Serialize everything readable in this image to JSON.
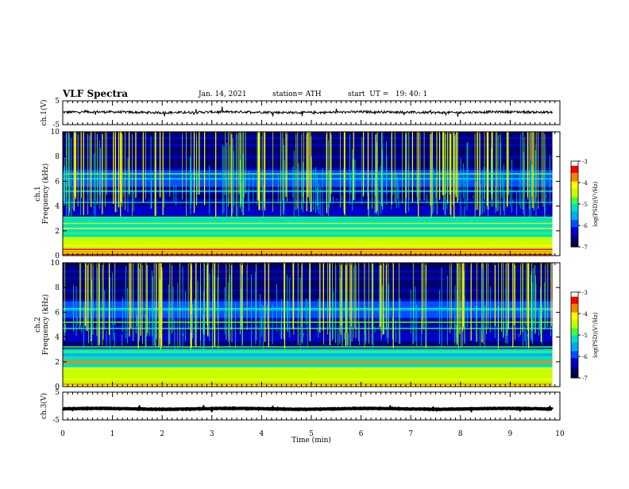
{
  "header": {
    "title": "VLF Spectra",
    "date": "Jan. 14, 2021",
    "station": "station= ATH",
    "start_ut": "start  UT =   19: 40: 1"
  },
  "colors": {
    "spectrogram_scale": [
      "#000030",
      "#000070",
      "#0000c8",
      "#0050ff",
      "#00aaff",
      "#00e0c0",
      "#40ff40",
      "#c8ff00",
      "#ffff00",
      "#ff8000",
      "#ff0000",
      "#ffffff"
    ]
  },
  "chart_data": [
    {
      "type": "line",
      "panel": "ch1-waveform",
      "ylabel": "ch.1(V)",
      "ylim": [
        -5,
        5
      ],
      "yticks": [
        "5",
        "-5"
      ],
      "xlim": [
        0,
        10
      ],
      "series": [
        {
          "trace_level_volts": 0.2,
          "noise_amplitude_volts": 1.0
        }
      ]
    },
    {
      "type": "heatmap",
      "panel": "ch1-spectrogram",
      "ylabel": "ch.1\nFrequency  (kHz)",
      "ylim": [
        0,
        10
      ],
      "yticks": [
        "0",
        "2",
        "4",
        "6",
        "8",
        "10"
      ],
      "xlim": [
        0,
        10
      ],
      "colorbar": {
        "label": "log(PSD)(V²/Hz)",
        "range": [
          -7,
          -3
        ],
        "ticks": [
          "-3",
          "-4",
          "-5",
          "-6",
          "-7"
        ]
      },
      "data_end_min": 9.85,
      "bands_khz": [
        {
          "f": 0.1,
          "level": -3.2
        },
        {
          "f": 0.3,
          "level": -3.6
        },
        {
          "f": 0.5,
          "level": -3.4
        },
        {
          "f": 0.9,
          "level": -4.3
        },
        {
          "f": 1.3,
          "level": -4.6
        },
        {
          "f": 1.8,
          "level": -4.8
        },
        {
          "f": 2.2,
          "level": -4.2
        },
        {
          "f": 2.6,
          "level": -4.5
        },
        {
          "f": 3.1,
          "level": -5.0
        },
        {
          "f": 4.3,
          "level": -5.4
        },
        {
          "f": 5.2,
          "level": -5.3
        },
        {
          "f": 6.2,
          "level": -5.2
        },
        {
          "f": 6.6,
          "level": -5.0
        }
      ],
      "spheric_count": 320
    },
    {
      "type": "heatmap",
      "panel": "ch2-spectrogram",
      "ylabel": "ch.2\nFrequency  (kHz)",
      "ylim": [
        0,
        10
      ],
      "yticks": [
        "0",
        "2",
        "4",
        "6",
        "8",
        "10"
      ],
      "xlim": [
        0,
        10
      ],
      "colorbar": {
        "label": "log(PSD)(V²/Hz)",
        "range": [
          -7,
          -3
        ],
        "ticks": [
          "-3",
          "-4",
          "-5",
          "-6",
          "-7"
        ]
      },
      "data_end_min": 9.85,
      "bands_khz": [
        {
          "f": 0.2,
          "level": -3.6
        },
        {
          "f": 0.6,
          "level": -4.0
        },
        {
          "f": 1.0,
          "level": -4.4
        },
        {
          "f": 1.5,
          "level": -4.2
        },
        {
          "f": 1.9,
          "level": -3.8
        },
        {
          "f": 2.1,
          "level": -3.9
        },
        {
          "f": 2.8,
          "level": -4.9
        },
        {
          "f": 3.2,
          "level": -4.7
        },
        {
          "f": 4.7,
          "level": -5.2
        },
        {
          "f": 5.2,
          "level": -5.0
        },
        {
          "f": 6.3,
          "level": -5.1
        }
      ],
      "spheric_count": 340
    },
    {
      "type": "line",
      "panel": "ch3-waveform",
      "ylabel": "ch.3(V)",
      "ylim": [
        -5,
        5
      ],
      "yticks": [
        "5",
        "-5"
      ],
      "xlabel": "Time  (min)",
      "xlim": [
        0,
        10
      ],
      "xticks": [
        "0",
        "1",
        "2",
        "3",
        "4",
        "5",
        "6",
        "7",
        "8",
        "9",
        "10"
      ],
      "series": [
        {
          "trace_level_volts": -1.0,
          "noise_amplitude_volts": 0.2
        }
      ]
    }
  ]
}
